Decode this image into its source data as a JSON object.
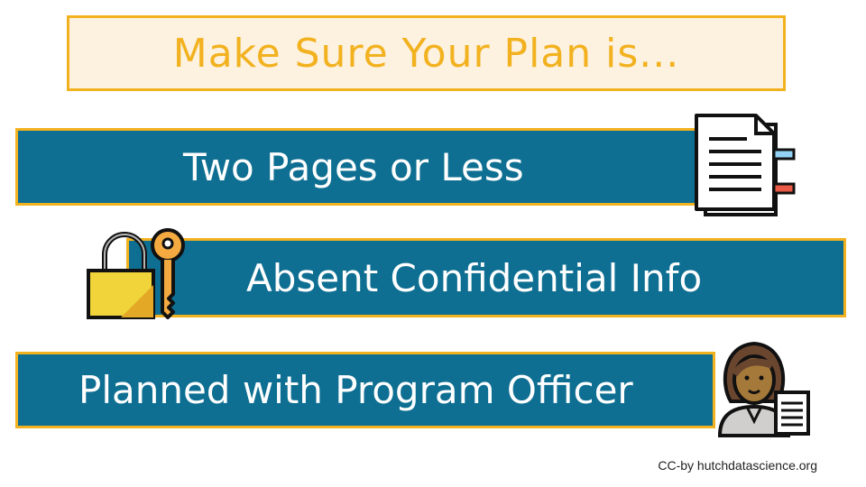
{
  "title": "Make Sure Your Plan is...",
  "items": [
    {
      "label": "Two Pages or Less",
      "icon": "document-icon"
    },
    {
      "label": "Absent Confidential Info",
      "icon": "lock-and-key-icon"
    },
    {
      "label": "Planned with Program Officer",
      "icon": "person-with-document-icon"
    }
  ],
  "credit": "CC-by hutchdatascience.org",
  "colors": {
    "accent": "#f2b21f",
    "bar": "#0e6f92",
    "title_bg": "#fdf1df"
  }
}
